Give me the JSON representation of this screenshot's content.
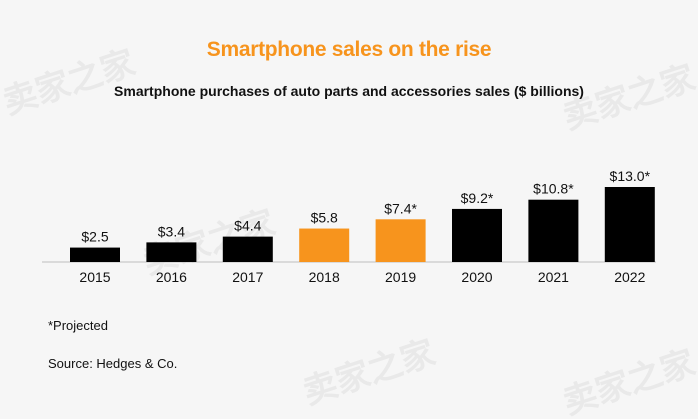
{
  "chart_data": {
    "type": "bar",
    "title": "Smartphone sales on the rise",
    "subtitle": "Smartphone purchases of auto parts and accessories sales ($ billions)",
    "categories": [
      "2015",
      "2016",
      "2017",
      "2018",
      "2019",
      "2020",
      "2021",
      "2022"
    ],
    "values": [
      2.5,
      3.4,
      4.4,
      5.8,
      7.4,
      9.2,
      10.8,
      13.0
    ],
    "data_labels": [
      "$2.5",
      "$3.4",
      "$4.4",
      "$5.8",
      "$7.4*",
      "$9.2*",
      "$10.8*",
      "$13.0*"
    ],
    "bar_colors": [
      "#000000",
      "#000000",
      "#000000",
      "#f7941d",
      "#f7941d",
      "#000000",
      "#000000",
      "#000000"
    ],
    "ylim": [
      0,
      13.0
    ],
    "grid": false,
    "legend": "none"
  },
  "notes": {
    "projected": "*Projected",
    "source": "Source: Hedges & Co."
  },
  "colors": {
    "title": "#f7941d",
    "highlight": "#f7941d",
    "bar": "#000000",
    "background": "#f6f6f6"
  }
}
